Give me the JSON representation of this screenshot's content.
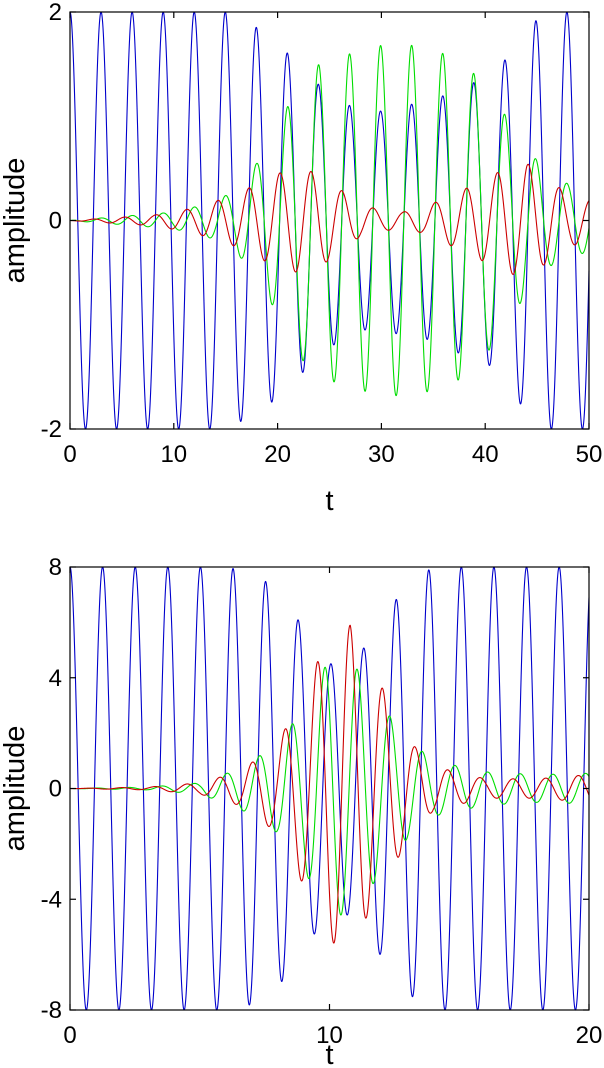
{
  "chart_data": [
    {
      "type": "line",
      "title": "",
      "xlabel": "t",
      "ylabel": "amplitude",
      "xlim": [
        0,
        50
      ],
      "ylim": [
        -2,
        2
      ],
      "xticks": [
        0,
        10,
        20,
        30,
        40,
        50
      ],
      "xtick_labels": [
        "0",
        "10",
        "20",
        "30",
        "40",
        "50"
      ],
      "yticks": [
        -2,
        0,
        2
      ],
      "ytick_labels": [
        "-2",
        "0",
        "2"
      ],
      "grid": false,
      "series": [
        {
          "color": "#0000cc",
          "omega": 2.1,
          "phase": 0,
          "envelope": [
            [
              0,
              2.0
            ],
            [
              15,
              2.0
            ],
            [
              18,
              1.85
            ],
            [
              20,
              1.7
            ],
            [
              22,
              1.5
            ],
            [
              24,
              1.3
            ],
            [
              26,
              1.15
            ],
            [
              28,
              1.05
            ],
            [
              30,
              1.05
            ],
            [
              32,
              1.1
            ],
            [
              35,
              1.15
            ],
            [
              38,
              1.3
            ],
            [
              40,
              1.35
            ],
            [
              42,
              1.55
            ],
            [
              44,
              1.85
            ],
            [
              46,
              2.0
            ],
            [
              50,
              2.0
            ]
          ]
        },
        {
          "color": "#00dd00",
          "omega": 2.1,
          "phase": 0,
          "envelope": [
            [
              0,
              0.0
            ],
            [
              10,
              0.08
            ],
            [
              14,
              0.18
            ],
            [
              16,
              0.3
            ],
            [
              18,
              0.55
            ],
            [
              20,
              0.9
            ],
            [
              22,
              1.3
            ],
            [
              24,
              1.5
            ],
            [
              27,
              1.6
            ],
            [
              30,
              1.68
            ],
            [
              33,
              1.68
            ],
            [
              36,
              1.6
            ],
            [
              38,
              1.5
            ],
            [
              40,
              1.3
            ],
            [
              42,
              1.0
            ],
            [
              44,
              0.7
            ],
            [
              46,
              0.45
            ],
            [
              48,
              0.35
            ],
            [
              50,
              0.3
            ]
          ]
        },
        {
          "color": "#cc0000",
          "omega": 2.1,
          "phase": 1.5,
          "envelope": [
            [
              0,
              0.0
            ],
            [
              8,
              0.05
            ],
            [
              12,
              0.12
            ],
            [
              16,
              0.25
            ],
            [
              20,
              0.45
            ],
            [
              22,
              0.5
            ],
            [
              24,
              0.45
            ],
            [
              26,
              0.3
            ],
            [
              28,
              0.15
            ],
            [
              30,
              0.1
            ],
            [
              32,
              0.08
            ],
            [
              34,
              0.12
            ],
            [
              38,
              0.3
            ],
            [
              42,
              0.5
            ],
            [
              44,
              0.55
            ],
            [
              46,
              0.4
            ],
            [
              48,
              0.25
            ],
            [
              50,
              0.2
            ]
          ]
        }
      ]
    },
    {
      "type": "line",
      "title": "",
      "xlabel": "t",
      "ylabel": "amplitude",
      "xlim": [
        0,
        20
      ],
      "ylim": [
        -8,
        8
      ],
      "xticks": [
        0,
        10,
        20
      ],
      "xtick_labels": [
        "0",
        "10",
        "20"
      ],
      "yticks": [
        -8,
        -4,
        0,
        4,
        8
      ],
      "ytick_labels": [
        "-8",
        "-4",
        "0",
        "4",
        "8"
      ],
      "grid": false,
      "series": [
        {
          "color": "#0000cc",
          "omega": 5.0,
          "phase": 0,
          "envelope": [
            [
              0,
              8.0
            ],
            [
              6,
              8.0
            ],
            [
              7,
              7.8
            ],
            [
              8,
              7.2
            ],
            [
              9,
              5.8
            ],
            [
              10,
              4.5
            ],
            [
              11,
              4.6
            ],
            [
              11.8,
              5.8
            ],
            [
              13,
              7.4
            ],
            [
              14,
              8.0
            ],
            [
              20,
              8.0
            ]
          ]
        },
        {
          "color": "#00dd00",
          "omega": 5.0,
          "phase": 1.2,
          "envelope": [
            [
              0,
              0.0
            ],
            [
              3,
              0.05
            ],
            [
              5,
              0.2
            ],
            [
              6.5,
              0.7
            ],
            [
              8,
              1.6
            ],
            [
              9,
              2.9
            ],
            [
              10,
              4.7
            ],
            [
              11,
              4.4
            ],
            [
              12,
              3.0
            ],
            [
              13,
              1.8
            ],
            [
              14,
              1.0
            ],
            [
              16,
              0.6
            ],
            [
              18,
              0.5
            ],
            [
              20,
              0.55
            ]
          ]
        },
        {
          "color": "#cc0000",
          "omega": 5.0,
          "phase": 2.6,
          "envelope": [
            [
              0,
              0.0
            ],
            [
              3,
              0.05
            ],
            [
              5,
              0.2
            ],
            [
              6.5,
              0.6
            ],
            [
              8,
              1.6
            ],
            [
              9,
              3.5
            ],
            [
              10,
              5.5
            ],
            [
              10.8,
              5.9
            ],
            [
              11.5,
              4.5
            ],
            [
              12.3,
              3.2
            ],
            [
              13,
              1.8
            ],
            [
              14,
              0.8
            ],
            [
              16,
              0.35
            ],
            [
              18,
              0.35
            ],
            [
              20,
              0.5
            ]
          ]
        }
      ]
    }
  ]
}
